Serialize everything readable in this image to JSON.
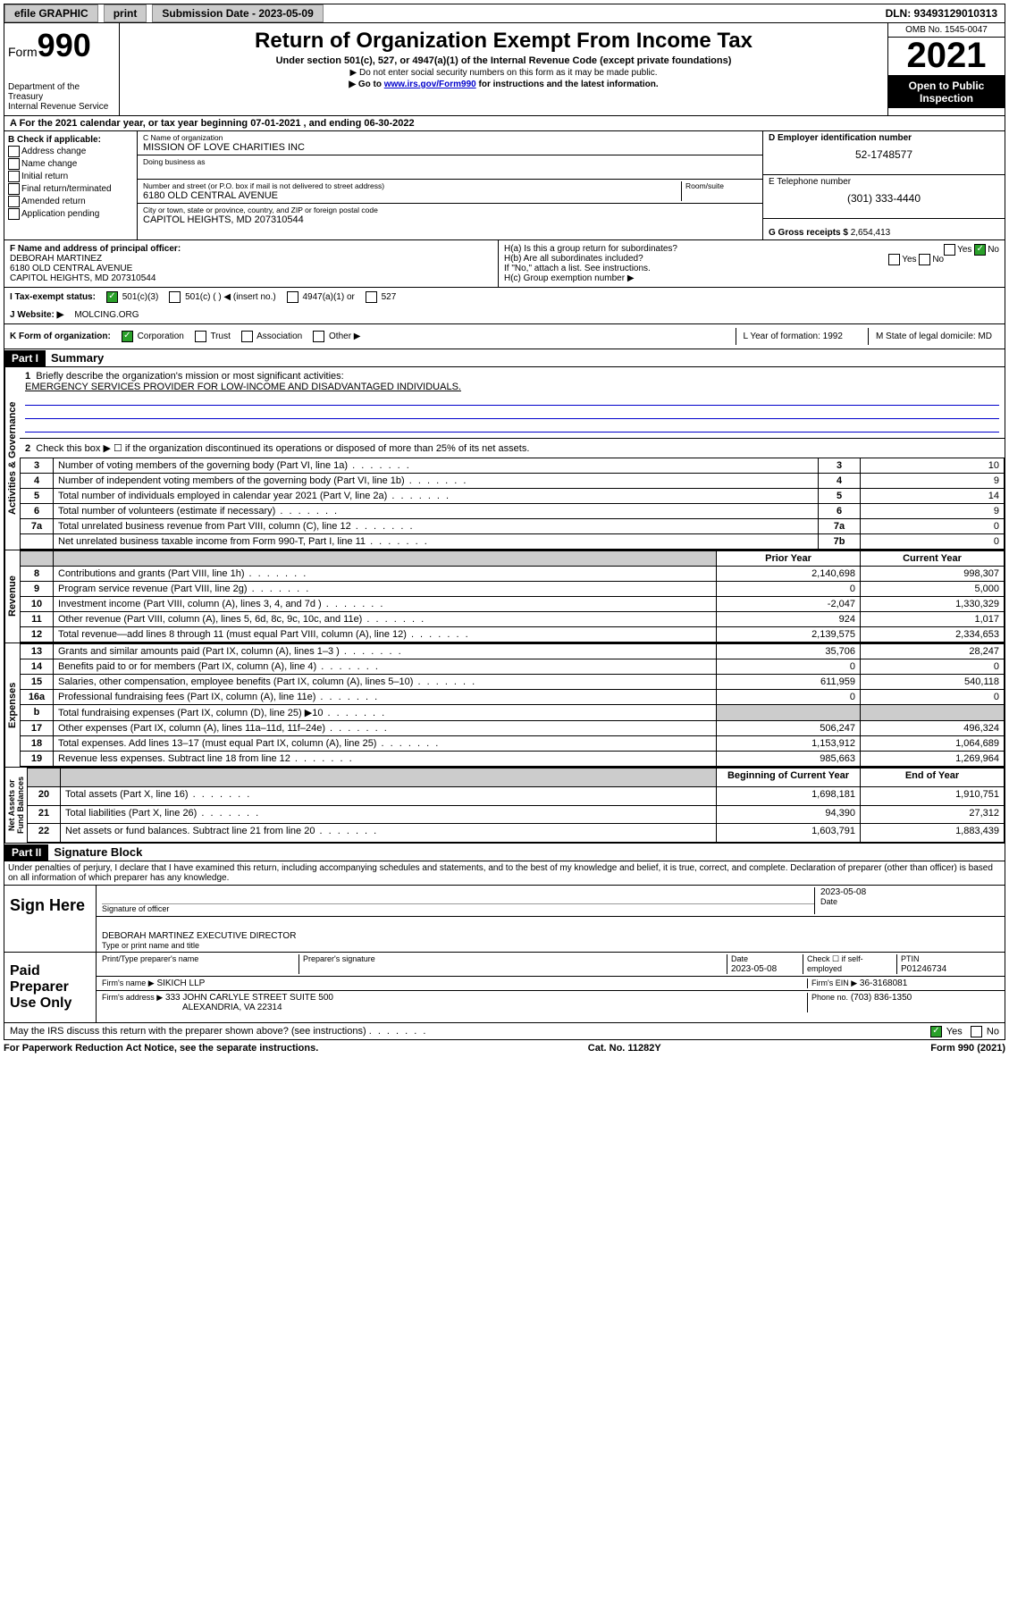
{
  "topbar": {
    "efile": "efile GRAPHIC",
    "print": "print",
    "submission": "Submission Date - 2023-05-09",
    "dln": "DLN: 93493129010313"
  },
  "header": {
    "form": "Form",
    "formnum": "990",
    "dept": "Department of the Treasury",
    "irs": "Internal Revenue Service",
    "title": "Return of Organization Exempt From Income Tax",
    "subtitle": "Under section 501(c), 527, or 4947(a)(1) of the Internal Revenue Code (except private foundations)",
    "note1": "▶ Do not enter social security numbers on this form as it may be made public.",
    "note2_pre": "▶ Go to ",
    "note2_link": "www.irs.gov/Form990",
    "note2_post": " for instructions and the latest information.",
    "omb": "OMB No. 1545-0047",
    "year": "2021",
    "open": "Open to Public Inspection"
  },
  "rowA": "A For the 2021 calendar year, or tax year beginning 07-01-2021   , and ending 06-30-2022",
  "boxB": {
    "title": "B Check if applicable:",
    "items": [
      "Address change",
      "Name change",
      "Initial return",
      "Final return/terminated",
      "Amended return",
      "Application pending"
    ]
  },
  "boxC": {
    "nameLbl": "C Name of organization",
    "name": "MISSION OF LOVE CHARITIES INC",
    "dbaLbl": "Doing business as",
    "dba": "",
    "streetLbl": "Number and street (or P.O. box if mail is not delivered to street address)",
    "roomLbl": "Room/suite",
    "street": "6180 OLD CENTRAL AVENUE",
    "cityLbl": "City or town, state or province, country, and ZIP or foreign postal code",
    "city": "CAPITOL HEIGHTS, MD  207310544"
  },
  "boxD": {
    "einLbl": "D Employer identification number",
    "ein": "52-1748577",
    "phoneLbl": "E Telephone number",
    "phone": "(301) 333-4440",
    "grossLbl": "G Gross receipts $",
    "gross": "2,654,413"
  },
  "boxF": {
    "lbl": "F Name and address of principal officer:",
    "name": "DEBORAH MARTINEZ",
    "addr1": "6180 OLD CENTRAL AVENUE",
    "addr2": "CAPITOL HEIGHTS, MD  207310544"
  },
  "boxH": {
    "ha": "H(a)  Is this a group return for subordinates?",
    "hb": "H(b)  Are all subordinates included?",
    "hbNote": "If \"No,\" attach a list. See instructions.",
    "hc": "H(c)  Group exemption number ▶"
  },
  "rowI": {
    "lbl": "I   Tax-exempt status:",
    "opt1": "501(c)(3)",
    "opt2": "501(c) (   ) ◀ (insert no.)",
    "opt3": "4947(a)(1) or",
    "opt4": "527"
  },
  "rowJ": {
    "lbl": "J   Website: ▶",
    "val": "MOLCING.ORG"
  },
  "rowK": {
    "lbl": "K Form of organization:",
    "opts": [
      "Corporation",
      "Trust",
      "Association",
      "Other ▶"
    ],
    "yearLbl": "L Year of formation: 1992",
    "stateLbl": "M State of legal domicile: MD"
  },
  "partI": {
    "hdr": "Part I",
    "title": "Summary",
    "q1": "Briefly describe the organization's mission or most significant activities:",
    "mission": "EMERGENCY SERVICES PROVIDER FOR LOW-INCOME AND DISADVANTAGED INDIVIDUALS.",
    "q2": "Check this box ▶ ☐ if the organization discontinued its operations or disposed of more than 25% of its net assets."
  },
  "govRows": [
    {
      "n": "3",
      "d": "Number of voting members of the governing body (Part VI, line 1a)",
      "b": "3",
      "v": "10"
    },
    {
      "n": "4",
      "d": "Number of independent voting members of the governing body (Part VI, line 1b)",
      "b": "4",
      "v": "9"
    },
    {
      "n": "5",
      "d": "Total number of individuals employed in calendar year 2021 (Part V, line 2a)",
      "b": "5",
      "v": "14"
    },
    {
      "n": "6",
      "d": "Total number of volunteers (estimate if necessary)",
      "b": "6",
      "v": "9"
    },
    {
      "n": "7a",
      "d": "Total unrelated business revenue from Part VIII, column (C), line 12",
      "b": "7a",
      "v": "0"
    },
    {
      "n": "",
      "d": "Net unrelated business taxable income from Form 990-T, Part I, line 11",
      "b": "7b",
      "v": "0"
    }
  ],
  "priorHdr": "Prior Year",
  "currHdr": "Current Year",
  "revRows": [
    {
      "n": "8",
      "d": "Contributions and grants (Part VIII, line 1h)",
      "p": "2,140,698",
      "c": "998,307"
    },
    {
      "n": "9",
      "d": "Program service revenue (Part VIII, line 2g)",
      "p": "0",
      "c": "5,000"
    },
    {
      "n": "10",
      "d": "Investment income (Part VIII, column (A), lines 3, 4, and 7d )",
      "p": "-2,047",
      "c": "1,330,329"
    },
    {
      "n": "11",
      "d": "Other revenue (Part VIII, column (A), lines 5, 6d, 8c, 9c, 10c, and 11e)",
      "p": "924",
      "c": "1,017"
    },
    {
      "n": "12",
      "d": "Total revenue—add lines 8 through 11 (must equal Part VIII, column (A), line 12)",
      "p": "2,139,575",
      "c": "2,334,653"
    }
  ],
  "expRows": [
    {
      "n": "13",
      "d": "Grants and similar amounts paid (Part IX, column (A), lines 1–3 )",
      "p": "35,706",
      "c": "28,247"
    },
    {
      "n": "14",
      "d": "Benefits paid to or for members (Part IX, column (A), line 4)",
      "p": "0",
      "c": "0"
    },
    {
      "n": "15",
      "d": "Salaries, other compensation, employee benefits (Part IX, column (A), lines 5–10)",
      "p": "611,959",
      "c": "540,118"
    },
    {
      "n": "16a",
      "d": "Professional fundraising fees (Part IX, column (A), line 11e)",
      "p": "0",
      "c": "0"
    },
    {
      "n": "b",
      "d": "Total fundraising expenses (Part IX, column (D), line 25) ▶10",
      "p": "",
      "c": "",
      "shaded": true
    },
    {
      "n": "17",
      "d": "Other expenses (Part IX, column (A), lines 11a–11d, 11f–24e)",
      "p": "506,247",
      "c": "496,324"
    },
    {
      "n": "18",
      "d": "Total expenses. Add lines 13–17 (must equal Part IX, column (A), line 25)",
      "p": "1,153,912",
      "c": "1,064,689"
    },
    {
      "n": "19",
      "d": "Revenue less expenses. Subtract line 18 from line 12",
      "p": "985,663",
      "c": "1,269,964"
    }
  ],
  "netHdr1": "Beginning of Current Year",
  "netHdr2": "End of Year",
  "netRows": [
    {
      "n": "20",
      "d": "Total assets (Part X, line 16)",
      "p": "1,698,181",
      "c": "1,910,751"
    },
    {
      "n": "21",
      "d": "Total liabilities (Part X, line 26)",
      "p": "94,390",
      "c": "27,312"
    },
    {
      "n": "22",
      "d": "Net assets or fund balances. Subtract line 21 from line 20",
      "p": "1,603,791",
      "c": "1,883,439"
    }
  ],
  "partII": {
    "hdr": "Part II",
    "title": "Signature Block",
    "decl": "Under penalties of perjury, I declare that I have examined this return, including accompanying schedules and statements, and to the best of my knowledge and belief, it is true, correct, and complete. Declaration of preparer (other than officer) is based on all information of which preparer has any knowledge."
  },
  "sign": {
    "lbl": "Sign Here",
    "sigLbl": "Signature of officer",
    "date": "2023-05-08",
    "dateLbl": "Date",
    "name": "DEBORAH MARTINEZ  EXECUTIVE DIRECTOR",
    "nameLbl": "Type or print name and title"
  },
  "preparer": {
    "lbl": "Paid Preparer Use Only",
    "nameLbl": "Print/Type preparer's name",
    "sigLbl": "Preparer's signature",
    "dateLbl": "Date",
    "date": "2023-05-08",
    "selfLbl": "Check ☐ if self-employed",
    "ptinLbl": "PTIN",
    "ptin": "P01246734",
    "firmNameLbl": "Firm's name     ▶",
    "firmName": "SIKICH LLP",
    "firmEinLbl": "Firm's EIN ▶",
    "firmEin": "36-3168081",
    "firmAddrLbl": "Firm's address ▶",
    "firmAddr1": "333 JOHN CARLYLE STREET SUITE 500",
    "firmAddr2": "ALEXANDRIA, VA  22314",
    "phoneLbl": "Phone no.",
    "phone": "(703) 836-1350"
  },
  "discuss": "May the IRS discuss this return with the preparer shown above? (see instructions)",
  "footer": {
    "left": "For Paperwork Reduction Act Notice, see the separate instructions.",
    "mid": "Cat. No. 11282Y",
    "right": "Form 990 (2021)"
  }
}
